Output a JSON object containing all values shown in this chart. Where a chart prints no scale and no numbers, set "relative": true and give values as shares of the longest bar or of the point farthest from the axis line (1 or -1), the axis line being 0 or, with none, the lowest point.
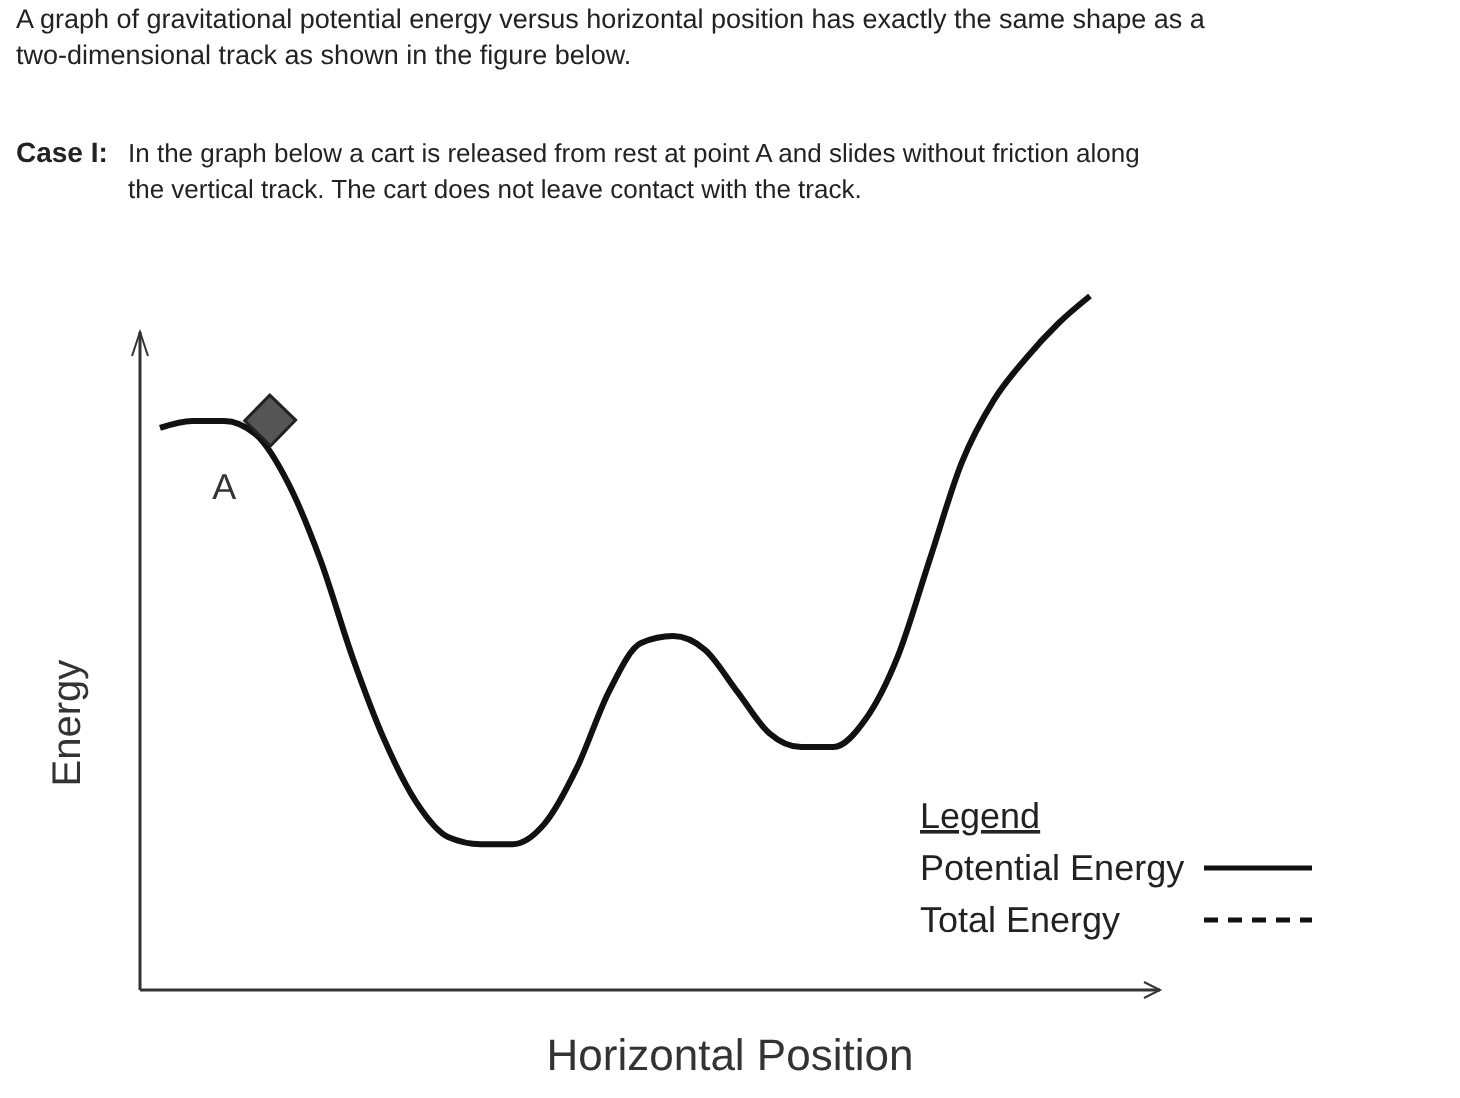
{
  "chart_data": {
    "type": "line",
    "title": "A graph of gravitational potential energy versus horizontal position has exactly the same shape as a two-dimensional track as shown in the figure below.",
    "subtitle": "Case I: In the graph below a cart is released from rest at point A and slides without friction along the vertical track. The cart does not leave contact with the track.",
    "xlabel": "Horizontal Position",
    "ylabel": "Energy",
    "relative": true,
    "legend": "bottom right",
    "legend_title": "Legend",
    "annotations": [
      "A"
    ],
    "categories": [
      null,
      null,
      null,
      null,
      null,
      null,
      null,
      null,
      null,
      null,
      null,
      null,
      null,
      null,
      null,
      null,
      null,
      null,
      null,
      null,
      null,
      null,
      null,
      null,
      null,
      null,
      null,
      null,
      null,
      null
    ],
    "series": [
      {
        "name": "Potential Energy",
        "color": "#111111",
        "line_style": "solid",
        "values": [
          0.81,
          0.82,
          0.82,
          0.8,
          0.73,
          0.62,
          0.48,
          0.36,
          0.27,
          0.22,
          0.21,
          0.21,
          0.24,
          0.32,
          0.43,
          0.5,
          0.51,
          0.49,
          0.43,
          0.37,
          0.35,
          0.35,
          0.39,
          0.48,
          0.62,
          0.76,
          0.85,
          0.91,
          0.96,
          1
        ]
      },
      {
        "name": "Total Energy",
        "color": "#111111",
        "line_style": "dashed",
        "values": [
          null,
          null,
          null,
          null,
          null,
          null,
          null,
          null,
          null,
          null,
          null,
          null,
          null,
          null,
          null,
          null,
          null,
          null,
          null,
          null,
          null,
          null,
          null,
          null,
          null,
          null,
          null,
          null,
          null,
          null
        ]
      }
    ]
  }
}
